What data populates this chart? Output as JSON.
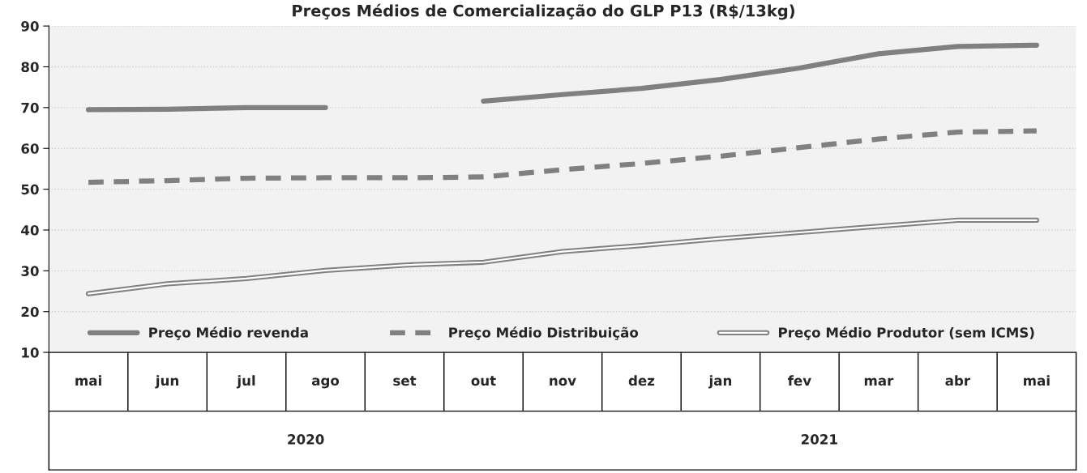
{
  "chart_data": {
    "type": "line",
    "title": "Preços Médios de Comercialização do GLP P13 (R$/13kg)",
    "categories": [
      "mai",
      "jun",
      "jul",
      "ago",
      "set",
      "out",
      "nov",
      "dez",
      "jan",
      "fev",
      "mar",
      "abr",
      "mai"
    ],
    "series": [
      {
        "name": "Preço Médio revenda",
        "color": "#808080",
        "line_style": "solid",
        "values": [
          69.5,
          69.6,
          70.0,
          70.0,
          null,
          71.6,
          73.2,
          74.7,
          76.9,
          79.7,
          83.2,
          85.0,
          85.3
        ]
      },
      {
        "name": "Preço Médio Distribuição",
        "color": "#808080",
        "line_style": "dashed",
        "values": [
          51.7,
          52.1,
          52.7,
          52.8,
          52.8,
          53.0,
          54.8,
          56.3,
          58.1,
          60.2,
          62.3,
          64.0,
          64.3
        ]
      },
      {
        "name": "Preço Médio Produtor (sem ICMS)",
        "color": "#808080",
        "values": [
          24.4,
          26.8,
          28.1,
          30.1,
          31.4,
          32.1,
          34.7,
          36.2,
          37.9,
          39.4,
          40.9,
          42.4,
          42.4
        ]
      }
    ],
    "ylim": [
      10,
      90
    ],
    "yticks": [
      10,
      20,
      30,
      40,
      50,
      60,
      70,
      80,
      90
    ],
    "grid": "y",
    "legend": "bottom",
    "marker": "none",
    "annotations": [
      "2020",
      "2021"
    ]
  }
}
